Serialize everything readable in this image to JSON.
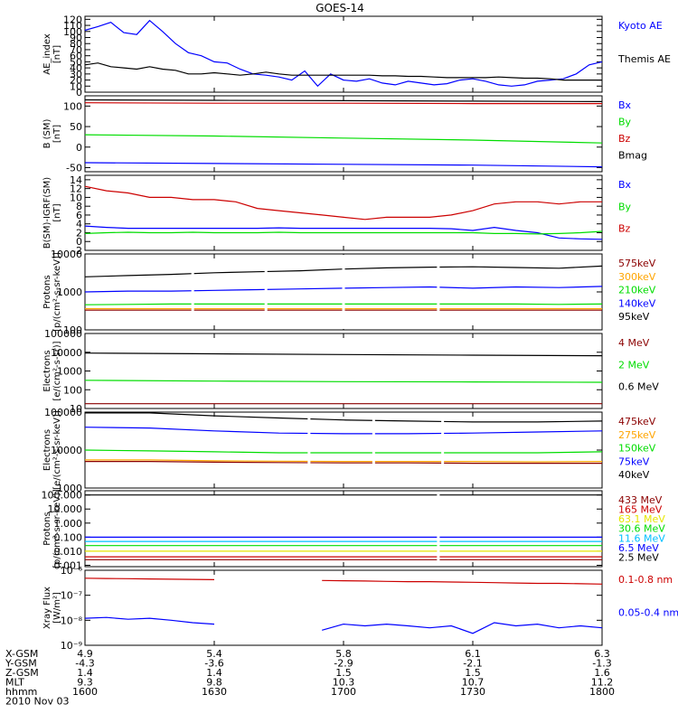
{
  "title": "GOES-14",
  "colors": {
    "black": "#000000",
    "blue": "#0000ff",
    "green": "#00dd00",
    "red": "#cc0000",
    "darkred": "#8b0000",
    "orange": "#ffa500",
    "yellow": "#e6e600",
    "cyan": "#00bfff",
    "purple": "#800080"
  },
  "chart_data": [
    {
      "type": "line",
      "id": "ae",
      "ylabel": "AE_index\n[nT]",
      "yscale": "linear",
      "ylim": [
        0,
        125
      ],
      "yticks": [
        0,
        10,
        20,
        30,
        40,
        50,
        60,
        70,
        80,
        90,
        100,
        110,
        120
      ],
      "x": [
        1600,
        1603,
        1606,
        1609,
        1612,
        1615,
        1618,
        1621,
        1624,
        1627,
        1630,
        1633,
        1636,
        1639,
        1642,
        1645,
        1648,
        1651,
        1654,
        1657,
        1700,
        1703,
        1706,
        1709,
        1712,
        1715,
        1718,
        1721,
        1724,
        1727,
        1730,
        1733,
        1736,
        1739,
        1742,
        1745,
        1748,
        1751,
        1754,
        1757,
        1800
      ],
      "series": [
        {
          "name": "Kyoto AE",
          "color": "#0000ff",
          "values": [
            102,
            108,
            115,
            98,
            95,
            118,
            100,
            80,
            65,
            60,
            50,
            48,
            38,
            30,
            28,
            25,
            20,
            35,
            10,
            30,
            20,
            18,
            22,
            15,
            12,
            18,
            15,
            12,
            14,
            20,
            22,
            18,
            12,
            10,
            12,
            18,
            20,
            22,
            30,
            45,
            50
          ]
        },
        {
          "name": "Themis AE",
          "color": "#000000",
          "values": [
            45,
            48,
            42,
            40,
            38,
            42,
            38,
            36,
            30,
            30,
            32,
            30,
            28,
            30,
            33,
            30,
            28,
            28,
            28,
            28,
            28,
            28,
            28,
            27,
            27,
            26,
            26,
            25,
            24,
            24,
            24,
            24,
            25,
            24,
            23,
            23,
            22,
            20,
            20,
            20,
            20
          ]
        }
      ]
    },
    {
      "type": "line",
      "id": "bsm",
      "ylabel": "B (SM)\n[nT]",
      "yscale": "linear",
      "ylim": [
        -60,
        125
      ],
      "yticks": [
        -50,
        0,
        50,
        100
      ],
      "x": [
        1600,
        1630,
        1700,
        1730,
        1800
      ],
      "series": [
        {
          "name": "Bx",
          "color": "#0000ff",
          "values": [
            -38,
            -40,
            -42,
            -44,
            -48
          ]
        },
        {
          "name": "By",
          "color": "#00dd00",
          "values": [
            30,
            27,
            22,
            17,
            10
          ]
        },
        {
          "name": "Bz",
          "color": "#cc0000",
          "values": [
            108,
            107,
            107,
            106,
            106
          ]
        },
        {
          "name": "Bmag",
          "color": "#000000",
          "values": [
            115,
            114,
            113,
            112,
            111
          ]
        }
      ]
    },
    {
      "type": "line",
      "id": "bigrf",
      "ylabel": "B(SM)-IGRF(SM)\n[nT]",
      "yscale": "linear",
      "ylim": [
        -2,
        15
      ],
      "yticks": [
        -2,
        0,
        2,
        4,
        6,
        8,
        10,
        12,
        14
      ],
      "x": [
        1600,
        1605,
        1610,
        1615,
        1620,
        1625,
        1630,
        1635,
        1640,
        1645,
        1650,
        1655,
        1700,
        1705,
        1710,
        1715,
        1720,
        1725,
        1730,
        1735,
        1740,
        1745,
        1750,
        1755,
        1800
      ],
      "series": [
        {
          "name": "Bx",
          "color": "#0000ff",
          "values": [
            3.5,
            3.2,
            3.0,
            3.0,
            3.0,
            3.0,
            3.0,
            3.0,
            3.0,
            3.1,
            3.0,
            3.0,
            3.0,
            3.0,
            3.0,
            3.0,
            3.0,
            2.9,
            2.5,
            3.2,
            2.5,
            2.0,
            0.8,
            0.6,
            0.5
          ]
        },
        {
          "name": "By",
          "color": "#00dd00",
          "values": [
            1.8,
            2.0,
            2.1,
            2.0,
            2.0,
            2.1,
            2.0,
            2.0,
            2.0,
            2.1,
            2.0,
            2.0,
            2.0,
            2.0,
            2.0,
            2.0,
            2.0,
            2.0,
            2.0,
            1.8,
            1.8,
            1.7,
            1.8,
            2.0,
            2.3
          ]
        },
        {
          "name": "Bz",
          "color": "#cc0000",
          "values": [
            12.5,
            11.5,
            11.0,
            10.0,
            10.0,
            9.5,
            9.5,
            9.0,
            7.5,
            7.0,
            6.5,
            6.0,
            5.5,
            5.0,
            5.5,
            5.5,
            5.5,
            6.0,
            7.0,
            8.5,
            9.0,
            9.0,
            8.5,
            9.0,
            9.0
          ]
        }
      ]
    },
    {
      "type": "line",
      "id": "protons1",
      "ylabel": "Protons\n[p/(cm²-s-sr-keV)]",
      "yscale": "log",
      "ylim": [
        100,
        10000
      ],
      "yticks": [
        100,
        1000,
        10000
      ],
      "x": [
        1600,
        1610,
        1620,
        1630,
        1640,
        1650,
        1700,
        1710,
        1720,
        1730,
        1740,
        1750,
        1800
      ],
      "series": [
        {
          "name": "575keV",
          "color": "#8b0000",
          "values": [
            330,
            330,
            330,
            330,
            330,
            330,
            330,
            330,
            330,
            330,
            330,
            330,
            330
          ]
        },
        {
          "name": "300keV",
          "color": "#ffa500",
          "values": [
            360,
            360,
            360,
            360,
            360,
            360,
            360,
            360,
            360,
            360,
            360,
            360,
            360
          ]
        },
        {
          "name": "210keV",
          "color": "#00dd00",
          "values": [
            460,
            470,
            480,
            480,
            480,
            480,
            480,
            480,
            480,
            480,
            480,
            470,
            480
          ]
        },
        {
          "name": "140keV",
          "color": "#0000ff",
          "values": [
            1000,
            1050,
            1050,
            1100,
            1150,
            1200,
            1250,
            1300,
            1350,
            1250,
            1350,
            1300,
            1400
          ]
        },
        {
          "name": "95keV",
          "color": "#000000",
          "values": [
            2500,
            2700,
            2900,
            3200,
            3400,
            3600,
            4000,
            4300,
            4500,
            4600,
            4400,
            4200,
            4800
          ]
        }
      ],
      "gaps": [
        1625,
        1642,
        1700,
        1722
      ]
    },
    {
      "type": "line",
      "id": "electrons1",
      "ylabel": "Electrons\n[e/(cm²-s-sr)]",
      "yscale": "log",
      "ylim": [
        10,
        100000
      ],
      "yticks": [
        10,
        100,
        1000,
        10000,
        100000
      ],
      "x": [
        1600,
        1630,
        1700,
        1730,
        1800
      ],
      "series": [
        {
          "name": "4 MeV",
          "color": "#8b0000",
          "values": [
            18,
            18,
            18,
            18,
            18
          ]
        },
        {
          "name": "2 MeV",
          "color": "#00dd00",
          "values": [
            320,
            290,
            270,
            260,
            250
          ]
        },
        {
          "name": "0.6 MeV",
          "color": "#000000",
          "values": [
            9000,
            8200,
            7500,
            7000,
            6500
          ]
        }
      ]
    },
    {
      "type": "line",
      "id": "electrons2",
      "ylabel": "Electrons\n[e/(cm²-s-sr-keV)]",
      "yscale": "log",
      "ylim": [
        1000,
        100000
      ],
      "yticks": [
        1000,
        10000,
        100000
      ],
      "x": [
        1600,
        1615,
        1630,
        1645,
        1700,
        1715,
        1730,
        1745,
        1800
      ],
      "series": [
        {
          "name": "475keV",
          "color": "#8b0000",
          "values": [
            5000,
            5000,
            4800,
            4700,
            4600,
            4600,
            4500,
            4500,
            4500
          ]
        },
        {
          "name": "275keV",
          "color": "#ffa500",
          "values": [
            5500,
            5500,
            5200,
            5100,
            5000,
            5000,
            5000,
            4900,
            5000
          ]
        },
        {
          "name": "150keV",
          "color": "#00dd00",
          "values": [
            10000,
            9500,
            9000,
            8500,
            8500,
            8500,
            8500,
            8500,
            9000
          ]
        },
        {
          "name": "75keV",
          "color": "#0000ff",
          "values": [
            40000,
            38000,
            32000,
            28000,
            27000,
            27000,
            28000,
            30000,
            32000
          ]
        },
        {
          "name": "40keV",
          "color": "#000000",
          "values": [
            95000,
            95000,
            80000,
            70000,
            62000,
            58000,
            55000,
            55000,
            58000
          ]
        }
      ],
      "gaps": [
        1652,
        1707,
        1723
      ]
    },
    {
      "type": "line",
      "id": "protons2",
      "ylabel": "Protons\n[p/(cm²-s-sr-keV)]",
      "yscale": "log",
      "ylim": [
        0.0008,
        200
      ],
      "yticks": [
        0.001,
        0.01,
        0.1,
        1,
        10,
        100
      ],
      "ytick_labels": [
        "0.001",
        "0.010",
        "0.100",
        "1.000",
        "10.000",
        "100.000"
      ],
      "x": [
        1600,
        1630,
        1700,
        1730,
        1800
      ],
      "series": [
        {
          "name": "433 MeV",
          "color": "#8b0000",
          "values": [
            0.0025,
            0.0025,
            0.0025,
            0.0025,
            0.0025
          ]
        },
        {
          "name": "165 MeV",
          "color": "#cc0000",
          "values": [
            0.004,
            0.004,
            0.004,
            0.004,
            0.004
          ]
        },
        {
          "name": "63.1 MeV",
          "color": "#e6e600",
          "values": [
            0.01,
            0.01,
            0.01,
            0.01,
            0.01
          ]
        },
        {
          "name": "30.6 MeV",
          "color": "#00dd00",
          "values": [
            0.025,
            0.025,
            0.025,
            0.025,
            0.025
          ]
        },
        {
          "name": "11.6 MeV",
          "color": "#00bfff",
          "values": [
            0.05,
            0.05,
            0.05,
            0.05,
            0.05
          ]
        },
        {
          "name": "6.5 MeV",
          "color": "#0000ff",
          "values": [
            0.1,
            0.1,
            0.1,
            0.1,
            0.1
          ]
        },
        {
          "name": "2.5 MeV",
          "color": "#000000",
          "values": [
            100,
            100,
            100,
            100,
            100
          ]
        }
      ],
      "gaps": [
        1722
      ]
    },
    {
      "type": "line",
      "id": "xray",
      "ylabel": "Xray Flux\n[W/m²]",
      "yscale": "log",
      "ylim": [
        1e-09,
        1e-06
      ],
      "yticks": [
        1e-09,
        1e-08,
        1e-07,
        1e-06
      ],
      "ytick_labels": [
        "10⁻⁹",
        "10⁻⁸",
        "10⁻⁷",
        "10⁻⁶"
      ],
      "x": [
        1600,
        1605,
        1610,
        1615,
        1620,
        1625,
        1630,
        1635,
        1640,
        1645,
        1650,
        1655,
        1700,
        1705,
        1710,
        1715,
        1720,
        1725,
        1730,
        1735,
        1740,
        1745,
        1750,
        1755,
        1800
      ],
      "series": [
        {
          "name": "0.1-0.8 nm",
          "color": "#cc0000",
          "values": [
            4.8e-07,
            4.7e-07,
            4.6e-07,
            4.5e-07,
            4.4e-07,
            4.3e-07,
            4.2e-07,
            null,
            null,
            null,
            null,
            3.9e-07,
            3.8e-07,
            3.7e-07,
            3.6e-07,
            3.5e-07,
            3.5e-07,
            3.4e-07,
            3.3e-07,
            3.2e-07,
            3.1e-07,
            3e-07,
            3e-07,
            2.9e-07,
            2.8e-07
          ]
        },
        {
          "name": "0.05-0.4 nm",
          "color": "#0000ff",
          "values": [
            1.2e-08,
            1.3e-08,
            1.1e-08,
            1.2e-08,
            1e-08,
            8e-09,
            7e-09,
            null,
            null,
            null,
            null,
            4e-09,
            7e-09,
            6e-09,
            7e-09,
            6e-09,
            5e-09,
            6e-09,
            3e-09,
            8e-09,
            6e-09,
            7e-09,
            5e-09,
            6e-09,
            5e-09
          ]
        }
      ]
    }
  ],
  "x_axis": {
    "ticks": [
      1600,
      1630,
      1700,
      1730,
      1800
    ],
    "xlim": [
      1600,
      1800
    ],
    "rows": [
      {
        "label": "X-GSM",
        "values": [
          "4.9",
          "5.4",
          "5.8",
          "6.1",
          "6.3"
        ]
      },
      {
        "label": "Y-GSM",
        "values": [
          "-4.3",
          "-3.6",
          "-2.9",
          "-2.1",
          "-1.3"
        ]
      },
      {
        "label": "Z-GSM",
        "values": [
          "1.4",
          "1.4",
          "1.5",
          "1.5",
          "1.6"
        ]
      },
      {
        "label": "MLT",
        "values": [
          "9.3",
          "9.8",
          "10.3",
          "10.7",
          "11.2"
        ]
      },
      {
        "label": "hhmm",
        "values": [
          "1600",
          "1630",
          "1700",
          "1730",
          "1800"
        ]
      }
    ],
    "date": "2010 Nov 03"
  }
}
